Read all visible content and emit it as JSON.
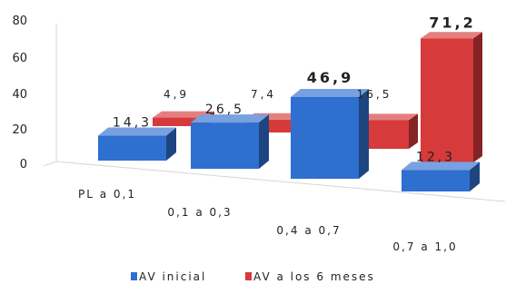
{
  "chart_data": {
    "type": "bar",
    "categories": [
      "PL a 0,1",
      "0,1 a 0,3",
      "0,4 a 0,7",
      "0,7 a 1,0"
    ],
    "series": [
      {
        "name": "AV inicial",
        "values": [
          14.3,
          26.5,
          46.9,
          12.3
        ],
        "labels": [
          "14,3",
          "26,5",
          "46,9",
          "12,3"
        ],
        "color": "#2e6fcf"
      },
      {
        "name": "AV a los 6 meses",
        "values": [
          4.9,
          7.4,
          16.5,
          71.2
        ],
        "labels": [
          "4,9",
          "7,4",
          "16,5",
          "71,2"
        ],
        "color": "#d63a3a"
      }
    ],
    "yticks": [
      "0",
      "20",
      "40",
      "60",
      "80"
    ],
    "ylim": [
      0,
      80
    ],
    "title": "",
    "xlabel": "",
    "ylabel": "",
    "legend_position": "bottom",
    "grid": false,
    "highlight_labels": {
      "color_blue": "#1f4e8c",
      "color_red": "#c0182b"
    }
  }
}
